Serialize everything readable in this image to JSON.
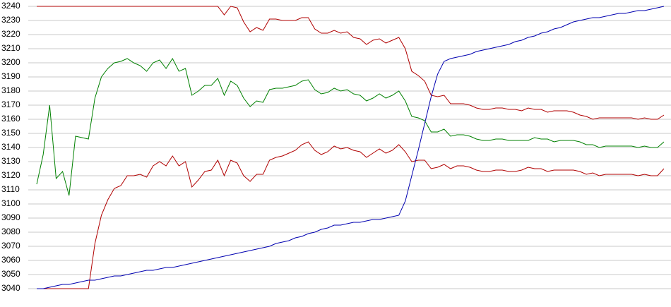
{
  "chart_data": {
    "type": "line",
    "ylim": [
      3040,
      3240
    ],
    "yticks": [
      3040,
      3050,
      3060,
      3070,
      3080,
      3090,
      3100,
      3110,
      3120,
      3130,
      3140,
      3150,
      3160,
      3170,
      3180,
      3190,
      3200,
      3210,
      3220,
      3230,
      3240
    ],
    "grid": true,
    "series": [
      {
        "color": "#b00000",
        "values": [
          3240,
          3240,
          3240,
          3240,
          3240,
          3240,
          3240,
          3240,
          3240,
          3240,
          3240,
          3240,
          3240,
          3240,
          3240,
          3240,
          3240,
          3240,
          3240,
          3240,
          3240,
          3240,
          3240,
          3240,
          3240,
          3240,
          3240,
          3240,
          3240,
          3234,
          3240,
          3239,
          3229,
          3222,
          3225,
          3223,
          3231,
          3231,
          3230,
          3230,
          3230,
          3232,
          3232,
          3224,
          3221,
          3221,
          3223,
          3221,
          3222,
          3218,
          3217,
          3213,
          3216,
          3217,
          3214,
          3216,
          3218,
          3210,
          3194,
          3191,
          3187,
          3177,
          3176,
          3177,
          3171,
          3171,
          3171,
          3170,
          3168,
          3167,
          3167,
          3168,
          3168,
          3167,
          3167,
          3166,
          3168,
          3167,
          3167,
          3165,
          3166,
          3166,
          3166,
          3165,
          3163,
          3162,
          3160,
          3161,
          3161,
          3161,
          3161,
          3161,
          3161,
          3160,
          3161,
          3160,
          3160,
          3163
        ]
      },
      {
        "color": "#008000",
        "values": [
          3114,
          3135,
          3170,
          3118,
          3123,
          3106,
          3148,
          3147,
          3146,
          3175,
          3190,
          3196,
          3200,
          3201,
          3203,
          3200,
          3198,
          3194,
          3200,
          3202,
          3196,
          3203,
          3194,
          3196,
          3177,
          3180,
          3184,
          3184,
          3189,
          3177,
          3187,
          3184,
          3175,
          3169,
          3173,
          3172,
          3181,
          3182,
          3182,
          3183,
          3184,
          3187,
          3188,
          3181,
          3178,
          3179,
          3182,
          3180,
          3181,
          3178,
          3177,
          3173,
          3175,
          3178,
          3175,
          3177,
          3180,
          3173,
          3162,
          3161,
          3159,
          3151,
          3151,
          3153,
          3148,
          3149,
          3149,
          3148,
          3146,
          3145,
          3145,
          3146,
          3146,
          3145,
          3145,
          3145,
          3145,
          3147,
          3146,
          3146,
          3144,
          3145,
          3145,
          3145,
          3144,
          3142,
          3142,
          3140,
          3141,
          3141,
          3141,
          3141,
          3141,
          3140,
          3141,
          3140,
          3140,
          3144
        ]
      },
      {
        "color": "#b00000",
        "values": [
          3040,
          3040,
          3040,
          3040,
          3040,
          3040,
          3040,
          3040,
          3040,
          3072,
          3092,
          3103,
          3111,
          3113,
          3120,
          3120,
          3121,
          3119,
          3127,
          3130,
          3127,
          3134,
          3127,
          3130,
          3112,
          3117,
          3123,
          3124,
          3131,
          3120,
          3131,
          3129,
          3120,
          3116,
          3121,
          3121,
          3131,
          3133,
          3134,
          3136,
          3138,
          3142,
          3144,
          3138,
          3135,
          3137,
          3141,
          3139,
          3140,
          3138,
          3137,
          3133,
          3136,
          3139,
          3136,
          3138,
          3142,
          3137,
          3130,
          3131,
          3131,
          3125,
          3126,
          3128,
          3125,
          3127,
          3127,
          3126,
          3124,
          3123,
          3123,
          3124,
          3124,
          3123,
          3123,
          3124,
          3126,
          3125,
          3125,
          3123,
          3124,
          3124,
          3124,
          3124,
          3123,
          3121,
          3122,
          3120,
          3121,
          3121,
          3121,
          3121,
          3121,
          3120,
          3121,
          3120,
          3120,
          3125
        ]
      },
      {
        "color": "#0000b0",
        "values": [
          3040,
          3040,
          3041,
          3042,
          3043,
          3043,
          3044,
          3045,
          3046,
          3046,
          3047,
          3048,
          3049,
          3049,
          3050,
          3051,
          3052,
          3053,
          3053,
          3054,
          3055,
          3055,
          3056,
          3057,
          3058,
          3059,
          3060,
          3061,
          3062,
          3063,
          3064,
          3065,
          3066,
          3067,
          3068,
          3069,
          3070,
          3072,
          3073,
          3074,
          3076,
          3077,
          3079,
          3080,
          3082,
          3083,
          3085,
          3085,
          3086,
          3087,
          3087,
          3088,
          3089,
          3089,
          3090,
          3091,
          3092,
          3102,
          3120,
          3138,
          3157,
          3176,
          3192,
          3201,
          3203,
          3204,
          3205,
          3206,
          3208,
          3209,
          3210,
          3211,
          3212,
          3213,
          3215,
          3216,
          3218,
          3219,
          3221,
          3222,
          3224,
          3225,
          3227,
          3229,
          3230,
          3231,
          3232,
          3232,
          3233,
          3234,
          3235,
          3235,
          3236,
          3237,
          3237,
          3238,
          3239,
          3240
        ]
      }
    ]
  }
}
